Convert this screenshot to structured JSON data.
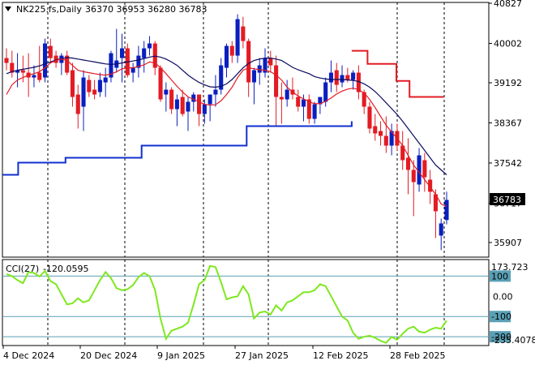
{
  "header": {
    "symbol": "NK225.fs,Daily",
    "ohlc": "36370 36953 36280 36783"
  },
  "indicator": {
    "label": "CCI(27)",
    "value": "-120.0595",
    "top_label": "173.723",
    "bottom_label": "-235.4078"
  },
  "last_price_label": "36783",
  "colors": {
    "bull": "#0a1fbf",
    "bear": "#e31b23",
    "ma_fast": "#e31b23",
    "ma_slow": "#0a0a60",
    "support": "#1030d0",
    "resistance": "#e31b23",
    "cci": "#7ee81e",
    "level": "#5aa0b5"
  },
  "chart_data": [
    {
      "type": "candlestick",
      "title": "",
      "x_tick_labels": [
        "4 Dec 2024",
        "20 Dec 2024",
        "9 Jan 2025",
        "27 Jan 2025",
        "12 Feb 2025",
        "28 Feb 2025"
      ],
      "y_tick_labels": [
        "40827",
        "40002",
        "39192",
        "38367",
        "37542",
        "36717",
        "35907"
      ],
      "ylim": [
        35620,
        40827
      ],
      "grid": false,
      "candles": [
        [
          39700,
          39900,
          39450,
          39600
        ],
        [
          39600,
          39850,
          39300,
          39400
        ],
        [
          39400,
          39800,
          39100,
          39450
        ],
        [
          39450,
          39750,
          39200,
          39400
        ],
        [
          39400,
          39800,
          38900,
          39300
        ],
        [
          39300,
          39550,
          39100,
          39350
        ],
        [
          39400,
          39950,
          39200,
          39250
        ],
        [
          39300,
          40100,
          39200,
          40000
        ],
        [
          39950,
          40100,
          39600,
          39700
        ],
        [
          39750,
          39850,
          39500,
          39600
        ],
        [
          39600,
          39800,
          39350,
          39750
        ],
        [
          39750,
          39850,
          39350,
          39400
        ],
        [
          39450,
          39600,
          38700,
          38900
        ],
        [
          38950,
          39150,
          38250,
          38550
        ],
        [
          38700,
          39450,
          38200,
          39300
        ],
        [
          39250,
          39350,
          38900,
          39000
        ],
        [
          39050,
          39250,
          38850,
          38950
        ],
        [
          39000,
          39400,
          38900,
          39250
        ],
        [
          39200,
          39500,
          38900,
          39300
        ],
        [
          39300,
          39850,
          39200,
          39800
        ],
        [
          39500,
          40300,
          39400,
          39650
        ],
        [
          39700,
          40200,
          39200,
          39900
        ],
        [
          39900,
          40000,
          39300,
          39350
        ],
        [
          39400,
          39600,
          39200,
          39500
        ],
        [
          39500,
          39950,
          39300,
          39750
        ],
        [
          39700,
          40050,
          39400,
          39900
        ],
        [
          39900,
          40150,
          39750,
          40000
        ],
        [
          40000,
          40050,
          39350,
          39500
        ],
        [
          39500,
          39550,
          38800,
          38850
        ],
        [
          38950,
          39200,
          38600,
          39050
        ],
        [
          39050,
          39100,
          38550,
          38650
        ],
        [
          38650,
          38950,
          38300,
          38850
        ],
        [
          38900,
          39050,
          38500,
          38550
        ],
        [
          38600,
          38900,
          38200,
          38800
        ],
        [
          38800,
          39000,
          38600,
          38950
        ],
        [
          38950,
          38950,
          38300,
          38550
        ],
        [
          38550,
          38850,
          38350,
          38750
        ],
        [
          38750,
          38950,
          38400,
          38950
        ],
        [
          38950,
          39350,
          38700,
          39050
        ],
        [
          39050,
          39700,
          38950,
          39550
        ],
        [
          39500,
          40000,
          39300,
          39950
        ],
        [
          39950,
          40050,
          39600,
          39750
        ],
        [
          39750,
          40600,
          39600,
          40500
        ],
        [
          40350,
          40550,
          39900,
          40050
        ],
        [
          40050,
          40100,
          38900,
          39200
        ],
        [
          39200,
          39500,
          38750,
          39450
        ],
        [
          39400,
          39700,
          39150,
          39550
        ],
        [
          39400,
          39900,
          39300,
          39700
        ],
        [
          39700,
          39850,
          39400,
          39550
        ],
        [
          39550,
          39750,
          38300,
          38900
        ],
        [
          38900,
          39200,
          38350,
          38850
        ],
        [
          38850,
          39250,
          38700,
          39050
        ],
        [
          39050,
          39300,
          38850,
          38950
        ],
        [
          38900,
          39050,
          38600,
          38700
        ],
        [
          38700,
          38950,
          38400,
          38850
        ],
        [
          38850,
          38950,
          38350,
          38450
        ],
        [
          38450,
          38800,
          38350,
          38750
        ],
        [
          38750,
          38900,
          38550,
          38900
        ],
        [
          38800,
          39300,
          38700,
          39200
        ],
        [
          39200,
          39650,
          39000,
          39400
        ],
        [
          39450,
          39600,
          39000,
          39150
        ],
        [
          39200,
          39550,
          39100,
          39350
        ],
        [
          39350,
          39500,
          39200,
          39250
        ],
        [
          39250,
          39450,
          39050,
          39400
        ],
        [
          39400,
          39550,
          38850,
          39000
        ],
        [
          39000,
          39050,
          38550,
          38700
        ],
        [
          38700,
          38800,
          38150,
          38250
        ],
        [
          38300,
          38550,
          38000,
          38150
        ],
        [
          38200,
          38400,
          37900,
          38100
        ],
        [
          38100,
          38500,
          37750,
          37900
        ],
        [
          37900,
          38350,
          37700,
          38200
        ],
        [
          38200,
          38350,
          37800,
          37900
        ],
        [
          37900,
          38200,
          37400,
          37600
        ],
        [
          37650,
          38050,
          36900,
          37400
        ],
        [
          37400,
          37600,
          36450,
          37150
        ],
        [
          37100,
          37850,
          36950,
          37700
        ],
        [
          37600,
          37750,
          36950,
          37250
        ],
        [
          37200,
          37400,
          36700,
          36950
        ],
        [
          36900,
          37000,
          36000,
          36550
        ],
        [
          36050,
          36400,
          35750,
          36300
        ],
        [
          36370,
          36953,
          36280,
          36783
        ]
      ],
      "ma_fast": [
        38950,
        39150,
        39250,
        39300,
        39350,
        39380,
        39420,
        39500,
        39600,
        39650,
        39680,
        39650,
        39550,
        39450,
        39420,
        39400,
        39380,
        39360,
        39350,
        39370,
        39420,
        39480,
        39500,
        39500,
        39530,
        39560,
        39620,
        39600,
        39500,
        39380,
        39250,
        39120,
        39000,
        38900,
        38850,
        38800,
        38750,
        38730,
        38740,
        38820,
        38950,
        39100,
        39300,
        39450,
        39500,
        39480,
        39460,
        39450,
        39420,
        39350,
        39250,
        39100,
        39000,
        38920,
        38860,
        38800,
        38760,
        38760,
        38810,
        38880,
        38960,
        39020,
        39060,
        39080,
        39050,
        38980,
        38850,
        38680,
        38500,
        38320,
        38180,
        38050,
        37900,
        37700,
        37500,
        37350,
        37200,
        37050,
        36900,
        36700,
        36650
      ],
      "ma_slow": [
        39380,
        39420,
        39450,
        39470,
        39490,
        39510,
        39540,
        39580,
        39620,
        39660,
        39690,
        39710,
        39700,
        39680,
        39660,
        39640,
        39620,
        39600,
        39580,
        39570,
        39580,
        39600,
        39620,
        39640,
        39660,
        39690,
        39720,
        39740,
        39720,
        39680,
        39620,
        39550,
        39450,
        39350,
        39270,
        39200,
        39150,
        39110,
        39100,
        39120,
        39170,
        39260,
        39380,
        39500,
        39590,
        39650,
        39680,
        39700,
        39700,
        39680,
        39650,
        39580,
        39510,
        39460,
        39420,
        39380,
        39320,
        39290,
        39270,
        39260,
        39260,
        39260,
        39250,
        39240,
        39220,
        39170,
        39100,
        39010,
        38900,
        38780,
        38660,
        38540,
        38400,
        38250,
        38100,
        37950,
        37800,
        37650,
        37500,
        37400,
        37300
      ],
      "support_level_steps": [
        [
          0,
          37300
        ],
        [
          6,
          37550
        ],
        [
          24,
          37650
        ],
        [
          53,
          37900
        ],
        [
          93,
          38300
        ],
        [
          133,
          38400
        ]
      ],
      "resistance_level_steps": [
        [
          133,
          39850
        ],
        [
          139,
          39580
        ],
        [
          150,
          39230
        ],
        [
          155,
          38900
        ]
      ]
    },
    {
      "type": "line",
      "title": "",
      "y_tick_labels": [
        "100",
        "0.00",
        "-100",
        "-200"
      ],
      "ylim": [
        -235.4078,
        173.723
      ],
      "levels": [
        100,
        -100,
        -200
      ],
      "series": [
        {
          "name": "CCI(27)",
          "values": [
            110,
            100,
            80,
            65,
            120,
            115,
            98,
            125,
            75,
            60,
            10,
            -40,
            -35,
            -10,
            -30,
            -20,
            30,
            80,
            120,
            90,
            40,
            30,
            35,
            55,
            95,
            115,
            100,
            30,
            -110,
            -210,
            -170,
            -160,
            -150,
            -130,
            -40,
            60,
            80,
            150,
            145,
            70,
            -15,
            -5,
            0,
            50,
            10,
            -110,
            -80,
            -75,
            -90,
            -45,
            -70,
            -30,
            -20,
            0,
            20,
            20,
            30,
            60,
            50,
            0,
            -50,
            -100,
            -120,
            -180,
            -210,
            -200,
            -195,
            -205,
            -220,
            -230,
            -200,
            -215,
            -185,
            -160,
            -150,
            -175,
            -180,
            -165,
            -155,
            -160,
            -120
          ]
        }
      ]
    }
  ]
}
